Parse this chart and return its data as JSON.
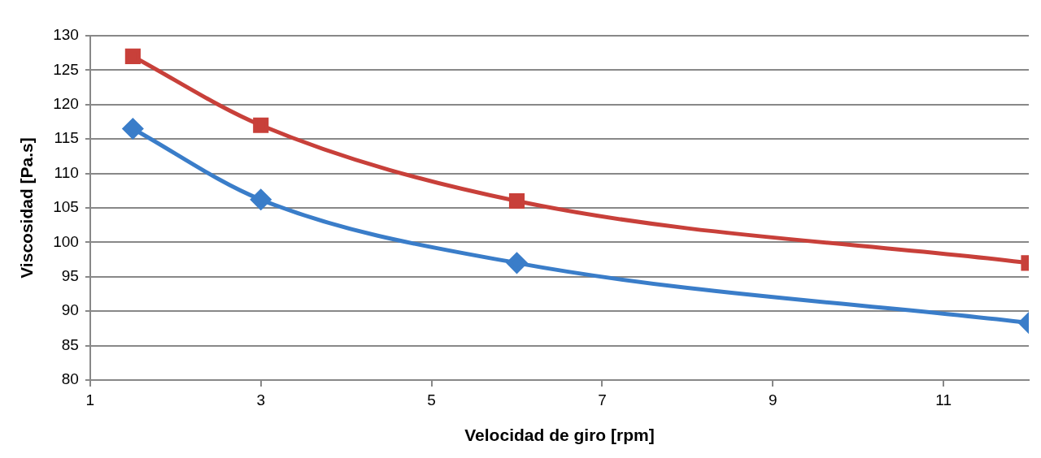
{
  "chart_data": {
    "type": "line",
    "xlabel": "Velocidad de giro [rpm]",
    "ylabel": "Viscosidad [Pa.s]",
    "x": [
      1.5,
      3,
      6,
      12
    ],
    "series": [
      {
        "color": "#c8403a",
        "marker": "square",
        "values": [
          127,
          117,
          106,
          97
        ]
      },
      {
        "color": "#3a7dc9",
        "marker": "diamond",
        "values": [
          116.5,
          106.2,
          97,
          88.3
        ]
      }
    ],
    "xlim": [
      1,
      12
    ],
    "xticks": [
      1,
      3,
      5,
      7,
      9,
      11
    ],
    "ylim": [
      80,
      130
    ],
    "yticks": [
      80,
      85,
      90,
      95,
      100,
      105,
      110,
      115,
      120,
      125,
      130
    ],
    "grid": "y",
    "legend": false,
    "line_style": "solid"
  }
}
